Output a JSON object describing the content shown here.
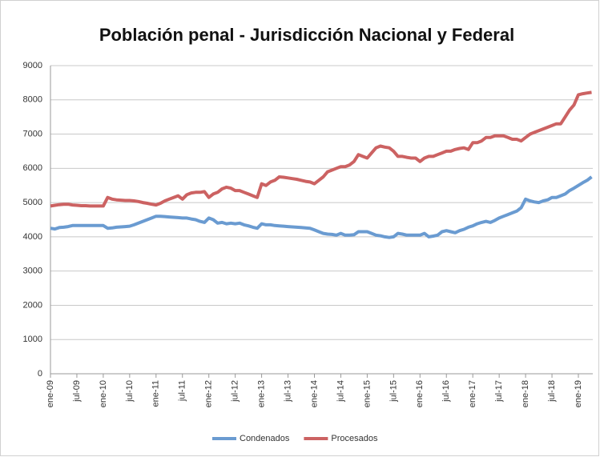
{
  "chart_data": {
    "type": "line",
    "title": "Población penal - Jurisdicción Nacional y Federal",
    "categories": [
      "ene-09",
      null,
      null,
      null,
      null,
      null,
      "jul-09",
      null,
      null,
      null,
      null,
      null,
      "ene-10",
      null,
      null,
      null,
      null,
      null,
      "jul-10",
      null,
      null,
      null,
      null,
      null,
      "ene-11",
      null,
      null,
      null,
      null,
      null,
      "jul-11",
      null,
      null,
      null,
      null,
      null,
      "ene-12",
      null,
      null,
      null,
      null,
      null,
      "jul-12",
      null,
      null,
      null,
      null,
      null,
      "ene-13",
      null,
      null,
      null,
      null,
      null,
      "jul-13",
      null,
      null,
      null,
      null,
      null,
      "ene-14",
      null,
      null,
      null,
      null,
      null,
      "jul-14",
      null,
      null,
      null,
      null,
      null,
      "ene-15",
      null,
      null,
      null,
      null,
      null,
      "jul-15",
      null,
      null,
      null,
      null,
      null,
      "ene-16",
      null,
      null,
      null,
      null,
      null,
      "jul-16",
      null,
      null,
      null,
      null,
      null,
      "ene-17",
      null,
      null,
      null,
      null,
      null,
      "jul-17",
      null,
      null,
      null,
      null,
      null,
      "ene-18",
      null,
      null,
      null,
      null,
      null,
      "jul-18",
      null,
      null,
      null,
      null,
      null,
      "ene-19",
      null,
      null,
      null
    ],
    "series": [
      {
        "name": "Condenados",
        "color": "#6a9bd1",
        "values": [
          4250,
          4230,
          4270,
          4280,
          4300,
          4330,
          4330,
          4330,
          4330,
          4330,
          4330,
          4330,
          4330,
          4250,
          4260,
          4280,
          4290,
          4300,
          4310,
          4350,
          4400,
          4450,
          4500,
          4550,
          4600,
          4600,
          4590,
          4580,
          4570,
          4560,
          4550,
          4550,
          4520,
          4500,
          4450,
          4420,
          4550,
          4500,
          4400,
          4420,
          4380,
          4400,
          4380,
          4400,
          4350,
          4320,
          4280,
          4250,
          4380,
          4350,
          4350,
          4330,
          4320,
          4310,
          4300,
          4290,
          4280,
          4270,
          4260,
          4250,
          4200,
          4150,
          4100,
          4080,
          4070,
          4050,
          4100,
          4050,
          4050,
          4060,
          4150,
          4150,
          4150,
          4100,
          4050,
          4030,
          4000,
          3980,
          4000,
          4100,
          4080,
          4050,
          4050,
          4050,
          4050,
          4100,
          4000,
          4020,
          4050,
          4150,
          4180,
          4150,
          4120,
          4180,
          4220,
          4280,
          4320,
          4380,
          4420,
          4450,
          4420,
          4480,
          4550,
          4600,
          4650,
          4700,
          4750,
          4850,
          5100,
          5050,
          5020,
          5000,
          5050,
          5080,
          5150,
          5150,
          5200,
          5250,
          5350,
          5420,
          5500,
          5580,
          5650,
          5750
        ]
      },
      {
        "name": "Procesados",
        "color": "#cc6262",
        "values": [
          4900,
          4920,
          4940,
          4950,
          4950,
          4930,
          4920,
          4910,
          4910,
          4900,
          4900,
          4900,
          4900,
          5150,
          5100,
          5080,
          5070,
          5060,
          5060,
          5050,
          5030,
          5000,
          4980,
          4950,
          4930,
          4980,
          5050,
          5100,
          5150,
          5200,
          5100,
          5230,
          5280,
          5300,
          5300,
          5320,
          5150,
          5250,
          5300,
          5400,
          5450,
          5420,
          5350,
          5350,
          5300,
          5250,
          5200,
          5150,
          5550,
          5500,
          5600,
          5650,
          5750,
          5740,
          5720,
          5700,
          5680,
          5650,
          5620,
          5600,
          5550,
          5650,
          5750,
          5900,
          5950,
          6000,
          6050,
          6050,
          6100,
          6200,
          6400,
          6350,
          6300,
          6450,
          6600,
          6650,
          6620,
          6600,
          6500,
          6350,
          6350,
          6320,
          6300,
          6300,
          6200,
          6300,
          6350,
          6350,
          6400,
          6450,
          6500,
          6500,
          6550,
          6580,
          6600,
          6550,
          6750,
          6750,
          6800,
          6900,
          6900,
          6950,
          6950,
          6950,
          6900,
          6850,
          6850,
          6800,
          6900,
          7000,
          7050,
          7100,
          7150,
          7200,
          7250,
          7300,
          7300,
          7500,
          7700,
          7850,
          8150,
          8180,
          8200,
          8220
        ]
      }
    ],
    "ylim": [
      0,
      9000
    ],
    "yticks": [
      0,
      1000,
      2000,
      3000,
      4000,
      5000,
      6000,
      7000,
      8000,
      9000
    ],
    "grid": true,
    "legend": "bottom"
  }
}
